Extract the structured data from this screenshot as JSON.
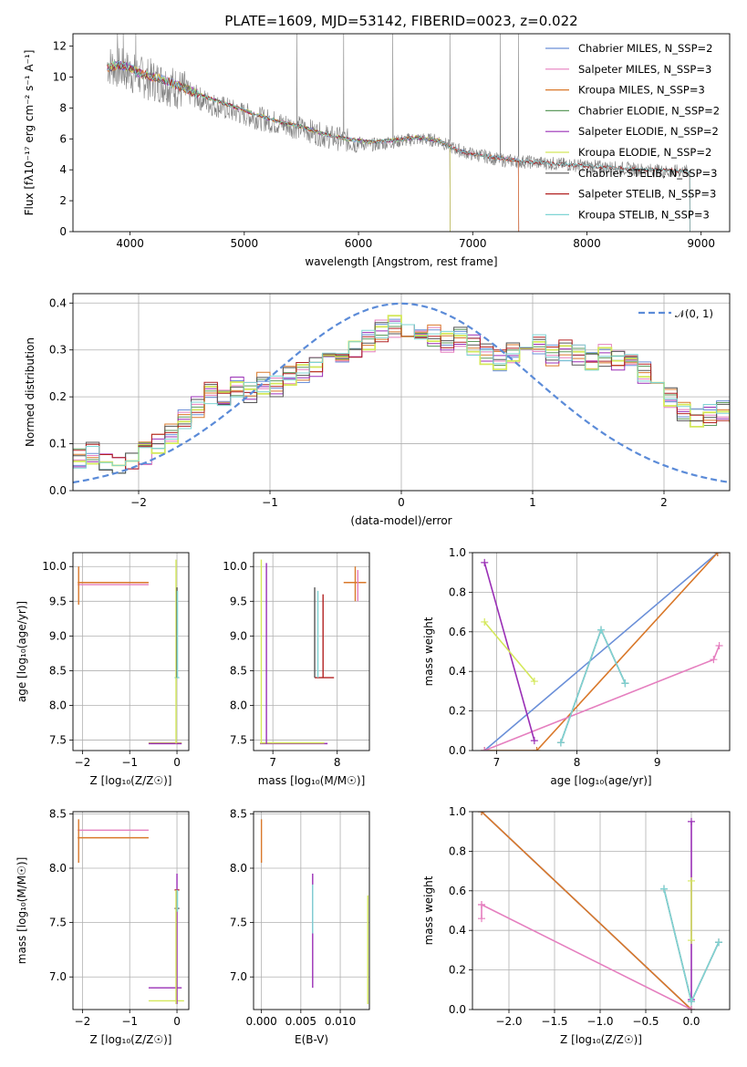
{
  "chart_data": [
    {
      "id": "spectrum",
      "type": "line",
      "title": "PLATE=1609, MJD=53142, FIBERID=0023, z=0.022",
      "xlabel": "wavelength [Angstrom, rest frame]",
      "ylabel": "Flux [fλ10⁻¹⁷ erg cm⁻² s⁻¹ A⁻¹]",
      "xlim": [
        3500,
        9250
      ],
      "ylim": [
        0,
        12.8
      ],
      "xticks": [
        4000,
        5000,
        6000,
        7000,
        8000,
        9000
      ],
      "yticks": [
        0,
        2,
        4,
        6,
        8,
        10,
        12
      ],
      "grid": false,
      "legend_position": "top-right",
      "observed": {
        "name": "",
        "color": "#808080",
        "x": [
          3800,
          3900,
          4000,
          4100,
          4300,
          4500,
          4700,
          4900,
          5100,
          5300,
          5500,
          5700,
          5900,
          6100,
          6300,
          6500,
          6700,
          6800,
          6900,
          7000,
          7100,
          7200,
          7300,
          7500,
          7700,
          7900,
          8100,
          8300,
          8500,
          8700,
          8900
        ],
        "y": [
          10.8,
          10.6,
          10.3,
          10.0,
          9.6,
          9.0,
          8.3,
          7.8,
          7.4,
          7.0,
          6.7,
          6.2,
          5.9,
          5.6,
          5.8,
          6.0,
          5.9,
          5.5,
          5.2,
          5.0,
          4.9,
          4.7,
          4.6,
          4.5,
          4.4,
          4.3,
          4.2,
          4.1,
          4.0,
          3.9,
          3.9
        ]
      },
      "series": [
        {
          "name": "Chabrier MILES, N_SSP=2",
          "color": "#6a8fd8",
          "end": 7400
        },
        {
          "name": "Salpeter MILES, N_SSP=3",
          "color": "#e57fbf",
          "end": 7400
        },
        {
          "name": "Kroupa MILES, N_SSP=3",
          "color": "#d9782a",
          "end": 7400
        },
        {
          "name": "Chabrier ELODIE, N_SSP=2",
          "color": "#5f9b5f",
          "end": 6800
        },
        {
          "name": "Salpeter ELODIE, N_SSP=2",
          "color": "#9a2fb6",
          "end": 6800
        },
        {
          "name": "Kroupa ELODIE, N_SSP=2",
          "color": "#d4e85a",
          "end": 6800
        },
        {
          "name": "Chabrier STELIB, N_SSP=3",
          "color": "#555555",
          "end": 8900
        },
        {
          "name": "Salpeter STELIB, N_SSP=3",
          "color": "#b22222",
          "end": 8900
        },
        {
          "name": "Kroupa STELIB, N_SSP=3",
          "color": "#7fd4d4",
          "end": 8900
        }
      ],
      "model_x": [
        3800,
        3900,
        4000,
        4100,
        4300,
        4500,
        4700,
        4900,
        5100,
        5300,
        5500,
        5700,
        5900,
        6100,
        6300,
        6500,
        6700,
        6800,
        6900,
        7000,
        7100,
        7200,
        7300,
        7400,
        7500,
        7700,
        7900,
        8100,
        8300,
        8500,
        8700,
        8900
      ],
      "model_y": [
        10.6,
        10.8,
        10.6,
        10.2,
        9.8,
        9.2,
        8.6,
        8.1,
        7.6,
        7.1,
        6.8,
        6.3,
        6.0,
        5.8,
        5.9,
        6.1,
        5.9,
        5.5,
        5.2,
        5.0,
        4.9,
        4.8,
        4.7,
        4.6,
        4.5,
        4.4,
        4.3,
        4.2,
        4.1,
        4.0,
        4.0,
        3.9
      ]
    },
    {
      "id": "residuals",
      "type": "histogram",
      "xlabel": "(data-model)/error",
      "ylabel": "Normed distribution",
      "xlim": [
        -2.5,
        2.5
      ],
      "ylim": [
        0,
        0.42
      ],
      "xticks": [
        -2,
        -1,
        0,
        1,
        2
      ],
      "yticks": [
        0.0,
        0.1,
        0.2,
        0.3,
        0.4
      ],
      "grid": true,
      "legend_position": "top-right",
      "gaussian_label": "𝒩(0, 1)",
      "gaussian_color": "#5b8bd8",
      "bin_width": 0.1,
      "bin_start": -2.5,
      "base_values": [
        0.07,
        0.08,
        0.06,
        0.05,
        0.07,
        0.08,
        0.1,
        0.12,
        0.15,
        0.18,
        0.21,
        0.2,
        0.22,
        0.21,
        0.23,
        0.22,
        0.24,
        0.25,
        0.26,
        0.27,
        0.28,
        0.3,
        0.32,
        0.34,
        0.35,
        0.34,
        0.33,
        0.33,
        0.32,
        0.33,
        0.31,
        0.29,
        0.28,
        0.29,
        0.3,
        0.31,
        0.29,
        0.3,
        0.29,
        0.28,
        0.29,
        0.28,
        0.27,
        0.25,
        0.23,
        0.2,
        0.17,
        0.15,
        0.16,
        0.17,
        0.17,
        0.16,
        0.13,
        0.11,
        0.11,
        0.12,
        0.13,
        0.11,
        0.11,
        0.1,
        0.09,
        0.08,
        0.07,
        0.07,
        0.06,
        0.05,
        0.05,
        0.04,
        0.04,
        0.04
      ]
    },
    {
      "id": "age-vs-Z",
      "type": "errorbar",
      "xlabel": "Z [log₁₀(Z/Z☉)]",
      "ylabel": "age  [log₁₀(age/yr)]",
      "xlim": [
        -2.2,
        0.25
      ],
      "ylim": [
        7.35,
        10.2
      ],
      "xticks": [
        -2,
        -1,
        0
      ],
      "yticks": [
        7.5,
        8.0,
        8.5,
        9.0,
        9.5,
        10.0
      ],
      "grid": true,
      "hbars": [
        {
          "y": 9.77,
          "x1": -2.1,
          "x2": -0.6,
          "color": "#d9782a"
        },
        {
          "y": 9.74,
          "x1": -2.1,
          "x2": -0.6,
          "color": "#e57fbf"
        },
        {
          "y": 7.46,
          "x1": -0.6,
          "x2": 0.1,
          "color": "#d4e85a"
        },
        {
          "y": 7.45,
          "x1": -0.6,
          "x2": 0.1,
          "color": "#9a2fb6"
        },
        {
          "y": 8.4,
          "x1": -0.05,
          "x2": 0.05,
          "color": "#7fd4d4"
        }
      ],
      "vbars": [
        {
          "x": -2.08,
          "y1": 9.45,
          "y2": 10.0,
          "color": "#d9782a"
        },
        {
          "x": -0.02,
          "y1": 7.45,
          "y2": 10.1,
          "color": "#d4e85a"
        },
        {
          "x": 0.0,
          "y1": 8.4,
          "y2": 9.7,
          "color": "#555555"
        },
        {
          "x": 0.01,
          "y1": 8.4,
          "y2": 9.65,
          "color": "#7fd4d4"
        }
      ]
    },
    {
      "id": "age-vs-mass",
      "type": "errorbar",
      "xlabel": "mass [log₁₀(M/M☉)]",
      "ylabel": "",
      "xlim": [
        6.7,
        8.5
      ],
      "ylim": [
        7.35,
        10.2
      ],
      "xticks": [
        7,
        8
      ],
      "yticks": [
        7.5,
        8.0,
        8.5,
        9.0,
        9.5,
        10.0
      ],
      "grid": true,
      "hbars": [
        {
          "y": 7.45,
          "x1": 6.8,
          "x2": 7.85,
          "color": "#9a2fb6"
        },
        {
          "y": 7.46,
          "x1": 6.8,
          "x2": 7.8,
          "color": "#d4e85a"
        },
        {
          "y": 9.77,
          "x1": 8.1,
          "x2": 8.45,
          "color": "#d9782a"
        },
        {
          "y": 8.4,
          "x1": 7.65,
          "x2": 7.95,
          "color": "#b22222"
        }
      ],
      "vbars": [
        {
          "x": 6.82,
          "y1": 7.45,
          "y2": 10.1,
          "color": "#d4e85a"
        },
        {
          "x": 6.9,
          "y1": 7.45,
          "y2": 10.05,
          "color": "#9a2fb6"
        },
        {
          "x": 7.65,
          "y1": 8.4,
          "y2": 9.7,
          "color": "#555555"
        },
        {
          "x": 7.7,
          "y1": 8.4,
          "y2": 9.65,
          "color": "#7fd4d4"
        },
        {
          "x": 7.78,
          "y1": 8.4,
          "y2": 9.6,
          "color": "#b22222"
        },
        {
          "x": 8.28,
          "y1": 9.5,
          "y2": 10.0,
          "color": "#d9782a"
        },
        {
          "x": 8.32,
          "y1": 9.5,
          "y2": 9.95,
          "color": "#e57fbf"
        }
      ]
    },
    {
      "id": "massweight-vs-age",
      "type": "line",
      "xlabel": "age  [log₁₀(age/yr)]",
      "ylabel": "mass weight",
      "xlim": [
        6.7,
        9.9
      ],
      "ylim": [
        0,
        1.0
      ],
      "xticks": [
        7,
        8,
        9
      ],
      "yticks": [
        0.0,
        0.2,
        0.4,
        0.6,
        0.8,
        1.0
      ],
      "grid": true,
      "lines": [
        {
          "color": "#6a8fd8",
          "x": [
            6.85,
            9.75
          ],
          "y": [
            0.0,
            1.0
          ]
        },
        {
          "color": "#d9782a",
          "x": [
            6.85,
            7.5,
            9.75
          ],
          "y": [
            0.0,
            0.0,
            1.0
          ]
        },
        {
          "color": "#e57fbf",
          "x": [
            6.85,
            9.7,
            9.77
          ],
          "y": [
            0.0,
            0.46,
            0.53
          ]
        },
        {
          "color": "#9a2fb6",
          "x": [
            6.85,
            7.47
          ],
          "y": [
            0.95,
            0.05
          ]
        },
        {
          "color": "#d4e85a",
          "x": [
            6.85,
            7.47
          ],
          "y": [
            0.65,
            0.35
          ]
        },
        {
          "color": "#555555",
          "x": [
            7.8,
            8.3,
            8.6
          ],
          "y": [
            0.04,
            0.61,
            0.34
          ]
        },
        {
          "color": "#7fd4d4",
          "x": [
            7.8,
            8.3,
            8.6
          ],
          "y": [
            0.04,
            0.61,
            0.34
          ]
        }
      ]
    },
    {
      "id": "mass-vs-Z",
      "type": "errorbar",
      "xlabel": "Z [log₁₀(Z/Z☉)]",
      "ylabel": "mass [log₁₀(M/M☉)]",
      "xlim": [
        -2.2,
        0.25
      ],
      "ylim": [
        6.7,
        8.52
      ],
      "xticks": [
        -2,
        -1,
        0
      ],
      "yticks": [
        7.0,
        7.5,
        8.0,
        8.5
      ],
      "grid": true,
      "hbars": [
        {
          "y": 8.35,
          "x1": -2.1,
          "x2": -0.6,
          "color": "#e57fbf"
        },
        {
          "y": 8.28,
          "x1": -2.1,
          "x2": -0.6,
          "color": "#d9782a"
        },
        {
          "y": 6.9,
          "x1": -0.6,
          "x2": 0.1,
          "color": "#9a2fb6"
        },
        {
          "y": 6.78,
          "x1": -0.6,
          "x2": 0.15,
          "color": "#d4e85a"
        },
        {
          "y": 7.8,
          "x1": -0.05,
          "x2": 0.05,
          "color": "#b22222"
        },
        {
          "y": 7.63,
          "x1": -0.05,
          "x2": 0.05,
          "color": "#555555"
        }
      ],
      "vbars": [
        {
          "x": -2.08,
          "y1": 8.05,
          "y2": 8.45,
          "color": "#d9782a"
        },
        {
          "x": 0.0,
          "y1": 6.75,
          "y2": 7.95,
          "color": "#9a2fb6"
        },
        {
          "x": -0.02,
          "y1": 6.75,
          "y2": 7.8,
          "color": "#d4e85a"
        },
        {
          "x": 0.01,
          "y1": 7.6,
          "y2": 7.8,
          "color": "#7fd4d4"
        }
      ]
    },
    {
      "id": "mass-vs-EBV",
      "type": "errorbar",
      "xlabel": "E(B-V)",
      "ylabel": "",
      "xlim": [
        -0.001,
        0.0137
      ],
      "ylim": [
        6.7,
        8.52
      ],
      "xticks": [
        0.0,
        0.005,
        0.01
      ],
      "xtick_labels": [
        "0.000",
        "0.005",
        "0.010"
      ],
      "yticks": [
        7.0,
        7.5,
        8.0,
        8.5
      ],
      "grid": true,
      "hbars": [],
      "vbars": [
        {
          "x": 0.0,
          "y1": 8.05,
          "y2": 8.45,
          "color": "#d9782a"
        },
        {
          "x": 0.0065,
          "y1": 6.9,
          "y2": 7.95,
          "color": "#9a2fb6"
        },
        {
          "x": 0.0065,
          "y1": 7.4,
          "y2": 7.85,
          "color": "#7fd4d4"
        },
        {
          "x": 0.0135,
          "y1": 6.75,
          "y2": 7.75,
          "color": "#d4e85a"
        }
      ]
    },
    {
      "id": "massweight-vs-Z",
      "type": "line",
      "xlabel": "Z [log₁₀(Z/Z☉)]",
      "ylabel": "mass weight",
      "xlim": [
        -2.4,
        0.42
      ],
      "ylim": [
        0,
        1.0
      ],
      "xticks": [
        -2.0,
        -1.5,
        -1.0,
        -0.5,
        0.0
      ],
      "xtick_labels": [
        "−2.0",
        "−1.5",
        "−1.0",
        "−0.5",
        "0.0"
      ],
      "yticks": [
        0.0,
        0.2,
        0.4,
        0.6,
        0.8,
        1.0
      ],
      "grid": true,
      "lines": [
        {
          "color": "#6a8fd8",
          "x": [
            -2.3,
            0.0
          ],
          "y": [
            1.0,
            0.0
          ]
        },
        {
          "color": "#d9782a",
          "x": [
            -2.3,
            0.0
          ],
          "y": [
            1.0,
            0.0
          ]
        },
        {
          "color": "#e57fbf",
          "x": [
            -2.3,
            0.0
          ],
          "y": [
            0.53,
            0.0
          ]
        },
        {
          "color": "#e57fbf",
          "x": [
            -2.3,
            -2.3
          ],
          "y": [
            0.46,
            0.53
          ]
        },
        {
          "color": "#9a2fb6",
          "x": [
            0.0,
            0.0
          ],
          "y": [
            0.95,
            0.05
          ]
        },
        {
          "color": "#d4e85a",
          "x": [
            0.0,
            0.0
          ],
          "y": [
            0.65,
            0.35
          ]
        },
        {
          "color": "#555555",
          "x": [
            -0.3,
            0.0,
            0.3
          ],
          "y": [
            0.61,
            0.04,
            0.34
          ]
        },
        {
          "color": "#7fd4d4",
          "x": [
            -0.3,
            0.0,
            0.3
          ],
          "y": [
            0.61,
            0.04,
            0.34
          ]
        }
      ]
    }
  ]
}
